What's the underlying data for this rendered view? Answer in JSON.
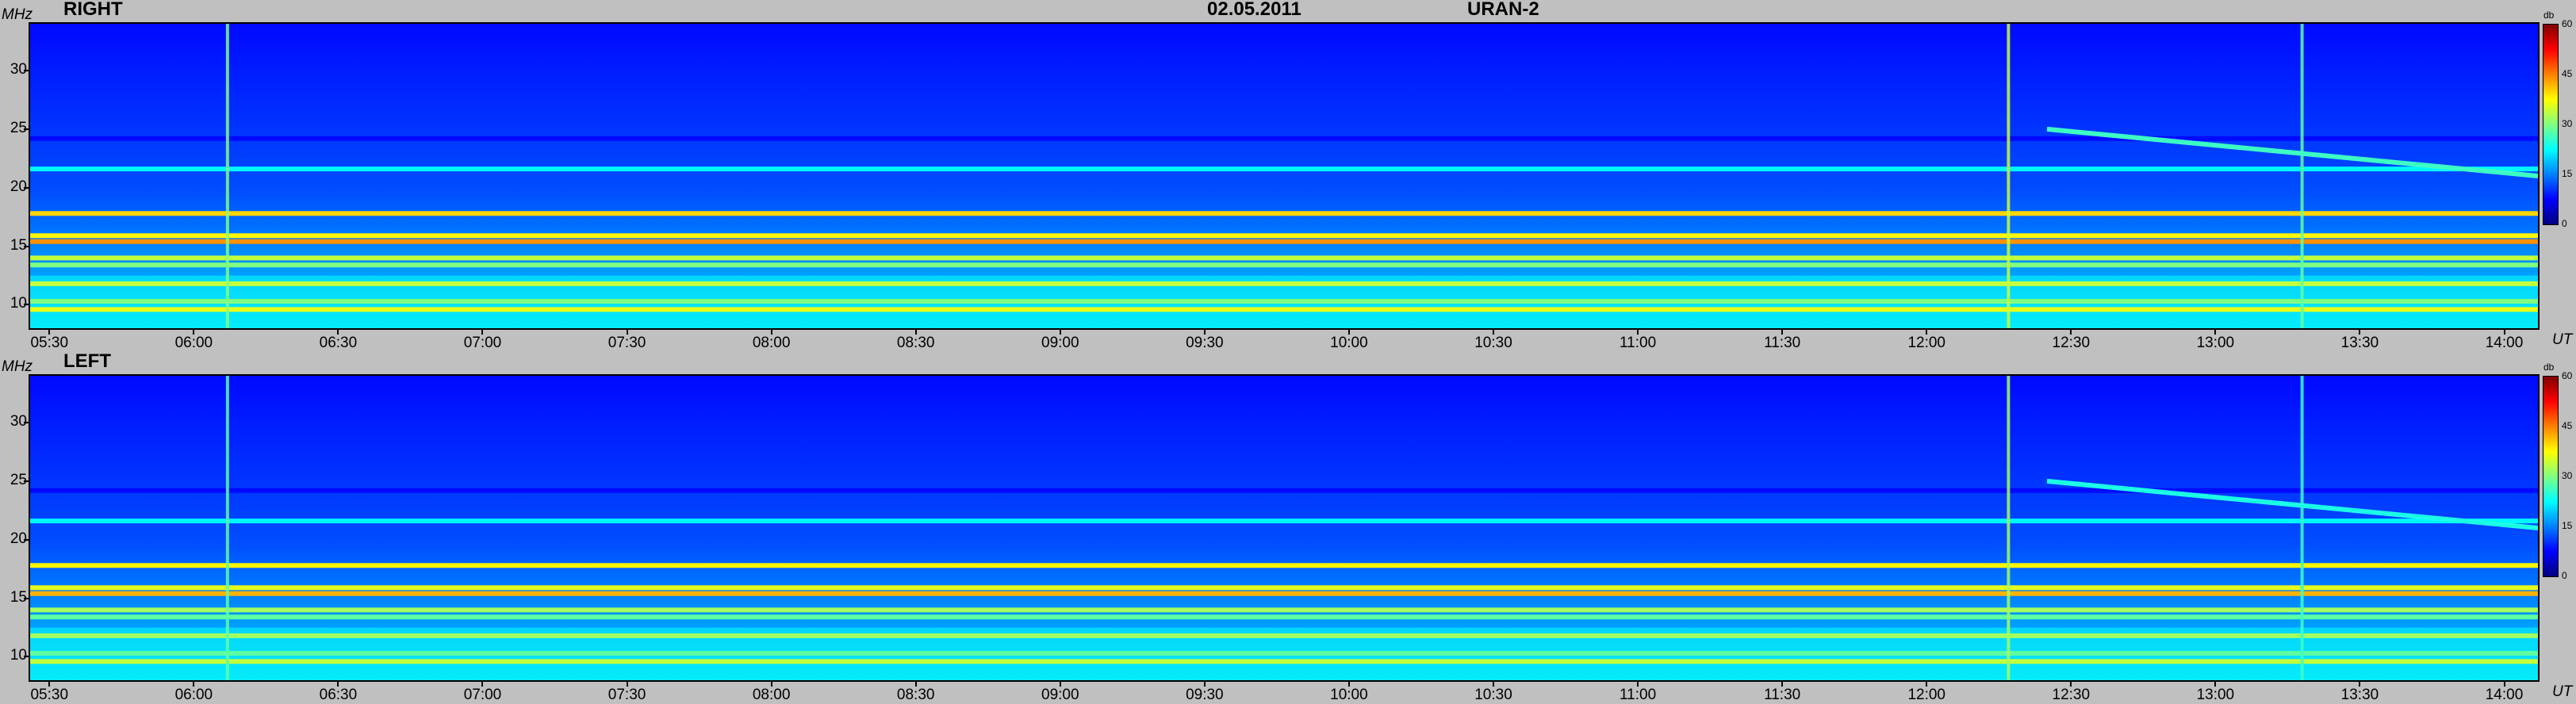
{
  "header": {
    "date": "02.05.2011",
    "instrument": "URAN-2"
  },
  "axis_units": {
    "freq": "MHz",
    "time": "UT",
    "colorbar": "db"
  },
  "colors": {
    "background": "#c0c0c0",
    "colormap": [
      "#000080",
      "#0000ff",
      "#0080ff",
      "#00ffff",
      "#80ff80",
      "#ffff00",
      "#ff8000",
      "#ff0000",
      "#800000"
    ]
  },
  "chart_data": [
    {
      "type": "heatmap",
      "title": "RIGHT",
      "xlabel": "UT",
      "ylabel": "MHz",
      "x_ticks": [
        "05:30",
        "06:00",
        "06:30",
        "07:00",
        "07:30",
        "08:00",
        "08:30",
        "09:00",
        "09:30",
        "10:00",
        "10:30",
        "11:00",
        "11:30",
        "12:00",
        "12:30",
        "13:00",
        "13:30",
        "14:00"
      ],
      "x_range": [
        "05:26",
        "14:07"
      ],
      "y_ticks": [
        10,
        15,
        20,
        25,
        30
      ],
      "y_range": [
        8,
        34
      ],
      "colorbar": {
        "label": "db",
        "ticks": [
          0,
          15,
          30,
          45,
          60
        ],
        "range": [
          0,
          60
        ]
      },
      "features": {
        "background_db": 12,
        "horizontal_bands": [
          {
            "freq_mhz": 9.6,
            "db": 36
          },
          {
            "freq_mhz": 10.3,
            "db": 30
          },
          {
            "freq_mhz": 11.8,
            "db": 34
          },
          {
            "freq_mhz": 13.4,
            "db": 30
          },
          {
            "freq_mhz": 14.0,
            "db": 34
          },
          {
            "freq_mhz": 15.4,
            "db": 44
          },
          {
            "freq_mhz": 15.9,
            "db": 38
          },
          {
            "freq_mhz": 17.8,
            "db": 40
          },
          {
            "freq_mhz": 21.6,
            "db": 22
          },
          {
            "freq_mhz": 24.2,
            "db": 8
          }
        ],
        "vertical_bursts": [
          {
            "time": "06:07",
            "db": 30
          },
          {
            "time": "12:17",
            "db": 34
          },
          {
            "time": "13:18",
            "db": 28
          }
        ],
        "drifting_trace": {
          "start": {
            "time": "12:25",
            "freq_mhz": 25.0
          },
          "end": {
            "time": "14:07",
            "freq_mhz": 21.0
          },
          "db": 26
        }
      }
    },
    {
      "type": "heatmap",
      "title": "LEFT",
      "xlabel": "UT",
      "ylabel": "MHz",
      "x_ticks": [
        "05:30",
        "06:00",
        "06:30",
        "07:00",
        "07:30",
        "08:00",
        "08:30",
        "09:00",
        "09:30",
        "10:00",
        "10:30",
        "11:00",
        "11:30",
        "12:00",
        "12:30",
        "13:00",
        "13:30",
        "14:00"
      ],
      "x_range": [
        "05:26",
        "14:07"
      ],
      "y_ticks": [
        10,
        15,
        20,
        25,
        30
      ],
      "y_range": [
        8,
        34
      ],
      "colorbar": {
        "label": "db",
        "ticks": [
          0,
          15,
          30,
          45,
          60
        ],
        "range": [
          0,
          60
        ]
      },
      "features": {
        "background_db": 12,
        "horizontal_bands": [
          {
            "freq_mhz": 9.6,
            "db": 34
          },
          {
            "freq_mhz": 10.3,
            "db": 28
          },
          {
            "freq_mhz": 11.8,
            "db": 32
          },
          {
            "freq_mhz": 13.4,
            "db": 28
          },
          {
            "freq_mhz": 14.0,
            "db": 32
          },
          {
            "freq_mhz": 15.4,
            "db": 42
          },
          {
            "freq_mhz": 15.9,
            "db": 36
          },
          {
            "freq_mhz": 17.8,
            "db": 38
          },
          {
            "freq_mhz": 21.6,
            "db": 22
          },
          {
            "freq_mhz": 24.2,
            "db": 8
          }
        ],
        "vertical_bursts": [
          {
            "time": "06:07",
            "db": 28
          },
          {
            "time": "12:17",
            "db": 32
          },
          {
            "time": "13:18",
            "db": 26
          }
        ],
        "drifting_trace": {
          "start": {
            "time": "12:25",
            "freq_mhz": 25.0
          },
          "end": {
            "time": "14:07",
            "freq_mhz": 21.0
          },
          "db": 24
        }
      }
    }
  ]
}
